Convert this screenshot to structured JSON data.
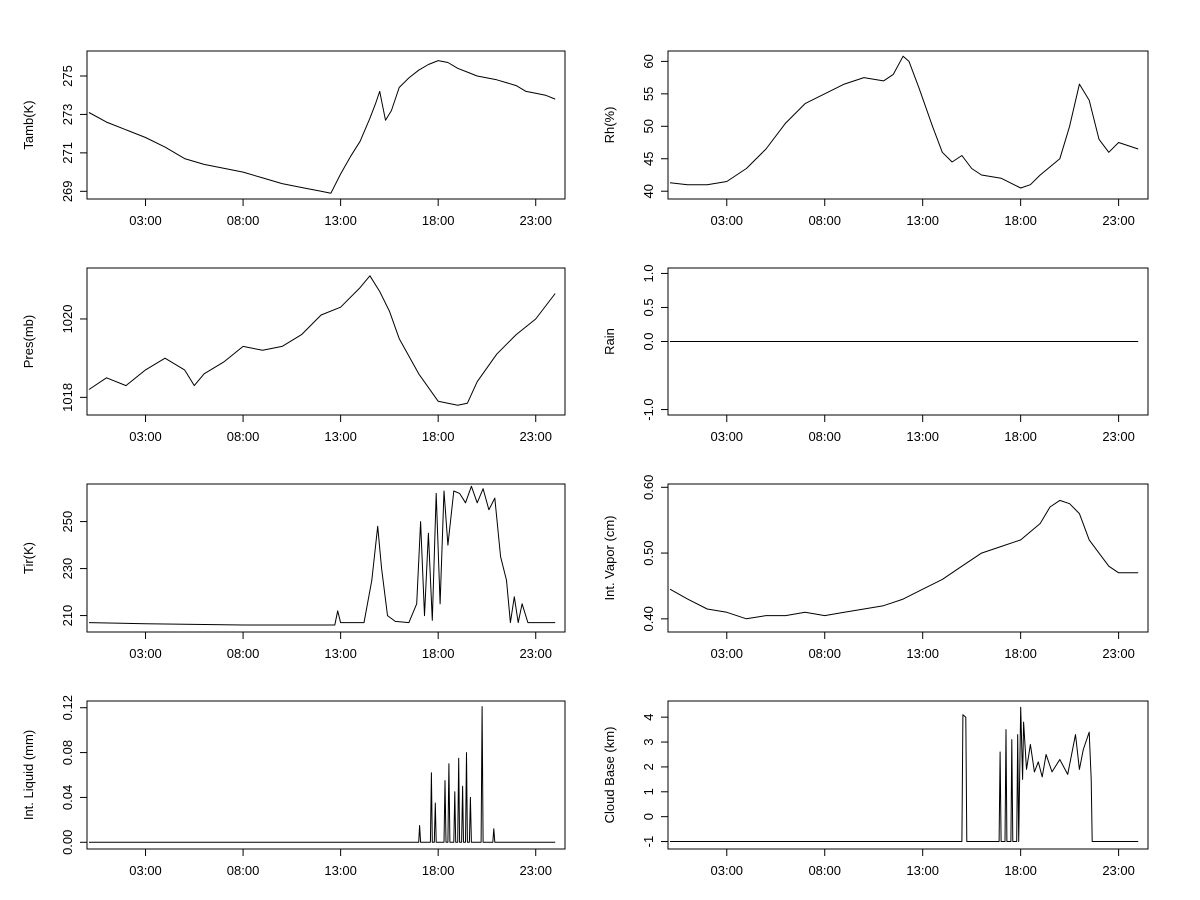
{
  "chart_data": [
    {
      "type": "line",
      "ylabel": "Tamb(K)",
      "x_ticks": [
        "03:00",
        "08:00",
        "13:00",
        "18:00",
        "23:00"
      ],
      "x_tick_hours": [
        3,
        8,
        13,
        18,
        23
      ],
      "xlim": [
        0,
        24.5
      ],
      "y_ticks": [
        "269",
        "271",
        "273",
        "275"
      ],
      "y_tick_values": [
        269,
        271,
        273,
        275
      ],
      "ylim": [
        268.6,
        276.3
      ],
      "x": [
        0.1,
        1,
        2,
        3,
        4,
        5,
        6,
        7,
        8,
        9,
        10,
        11,
        12,
        12.5,
        13,
        13.5,
        14,
        14.5,
        14.8,
        15,
        15.3,
        15.6,
        16,
        16.5,
        17,
        17.5,
        18,
        18.5,
        19,
        19.5,
        20,
        21,
        22,
        22.5,
        23,
        23.5,
        24
      ],
      "values": [
        273.1,
        272.6,
        272.2,
        271.8,
        271.3,
        270.7,
        270.4,
        270.2,
        270.0,
        269.7,
        269.4,
        269.2,
        269.0,
        268.9,
        269.9,
        270.8,
        271.6,
        272.8,
        273.6,
        274.2,
        272.7,
        273.2,
        274.4,
        274.9,
        275.3,
        275.6,
        275.8,
        275.7,
        275.4,
        275.2,
        275.0,
        274.8,
        274.5,
        274.2,
        274.1,
        274.0,
        273.8
      ]
    },
    {
      "type": "line",
      "ylabel": "Rh(%)",
      "x_ticks": [
        "03:00",
        "08:00",
        "13:00",
        "18:00",
        "23:00"
      ],
      "x_tick_hours": [
        3,
        8,
        13,
        18,
        23
      ],
      "xlim": [
        0,
        24.5
      ],
      "y_ticks": [
        "40",
        "45",
        "50",
        "55",
        "60"
      ],
      "y_tick_values": [
        40,
        45,
        50,
        55,
        60
      ],
      "ylim": [
        38.8,
        61.6
      ],
      "x": [
        0.1,
        1,
        2,
        3,
        4,
        5,
        6,
        7,
        8,
        9,
        10,
        11,
        11.5,
        12,
        12.3,
        12.8,
        13.5,
        14,
        14.5,
        15,
        15.5,
        16,
        17,
        18,
        18.5,
        19,
        20,
        20.5,
        21,
        21.5,
        22,
        22.5,
        23,
        24
      ],
      "values": [
        41.3,
        41.0,
        41.0,
        41.5,
        43.5,
        46.5,
        50.5,
        53.5,
        55.0,
        56.5,
        57.5,
        57.0,
        58.0,
        60.8,
        60.0,
        56.0,
        50.0,
        46.0,
        44.5,
        45.5,
        43.5,
        42.5,
        42.0,
        40.5,
        41.0,
        42.5,
        45.0,
        50.0,
        56.5,
        54.0,
        48.0,
        46.0,
        47.5,
        46.5
      ]
    },
    {
      "type": "line",
      "ylabel": "Pres(mb)",
      "x_ticks": [
        "03:00",
        "08:00",
        "13:00",
        "18:00",
        "23:00"
      ],
      "x_tick_hours": [
        3,
        8,
        13,
        18,
        23
      ],
      "xlim": [
        0,
        24.5
      ],
      "y_ticks": [
        "1018",
        "1020"
      ],
      "y_tick_values": [
        1018,
        1020
      ],
      "ylim": [
        1017.55,
        1021.3
      ],
      "x": [
        0.1,
        1,
        2,
        3,
        4,
        5,
        5.5,
        6,
        7,
        8,
        9,
        10,
        11,
        12,
        13,
        14,
        14.5,
        15,
        15.5,
        16,
        17,
        18,
        19,
        19.5,
        20,
        21,
        22,
        23,
        24
      ],
      "values": [
        1018.2,
        1018.5,
        1018.3,
        1018.7,
        1019.0,
        1018.7,
        1018.3,
        1018.6,
        1018.9,
        1019.3,
        1019.2,
        1019.3,
        1019.6,
        1020.1,
        1020.3,
        1020.8,
        1021.1,
        1020.7,
        1020.2,
        1019.5,
        1018.6,
        1017.9,
        1017.8,
        1017.85,
        1018.4,
        1019.1,
        1019.6,
        1020.0,
        1020.65
      ]
    },
    {
      "type": "line",
      "ylabel": "Rain",
      "x_ticks": [
        "03:00",
        "08:00",
        "13:00",
        "18:00",
        "23:00"
      ],
      "x_tick_hours": [
        3,
        8,
        13,
        18,
        23
      ],
      "xlim": [
        0,
        24.5
      ],
      "y_ticks": [
        "-1.0",
        "0.0",
        "0.5",
        "1.0"
      ],
      "y_tick_values": [
        -1.0,
        0.0,
        0.5,
        1.0
      ],
      "ylim": [
        -1.08,
        1.08
      ],
      "x": [
        0.1,
        24
      ],
      "values": [
        0,
        0
      ]
    },
    {
      "type": "line",
      "ylabel": "Tir(K)",
      "x_ticks": [
        "03:00",
        "08:00",
        "13:00",
        "18:00",
        "23:00"
      ],
      "x_tick_hours": [
        3,
        8,
        13,
        18,
        23
      ],
      "xlim": [
        0,
        24.5
      ],
      "y_ticks": [
        "210",
        "230",
        "250"
      ],
      "y_tick_values": [
        210,
        230,
        250
      ],
      "ylim": [
        203,
        266
      ],
      "x": [
        0.1,
        3,
        8,
        12,
        12.7,
        12.85,
        13.0,
        14.2,
        14.6,
        14.9,
        15.1,
        15.4,
        15.8,
        16.5,
        16.9,
        17.1,
        17.3,
        17.5,
        17.7,
        17.9,
        18.1,
        18.3,
        18.5,
        18.8,
        19.1,
        19.4,
        19.7,
        20.0,
        20.3,
        20.6,
        20.9,
        21.2,
        21.5,
        21.7,
        21.9,
        22.1,
        22.3,
        22.6,
        24
      ],
      "values": [
        207,
        206.5,
        206,
        206,
        206,
        212,
        207,
        207,
        225,
        248,
        230,
        210,
        207.5,
        207,
        215,
        250,
        210,
        245,
        208,
        262,
        215,
        263,
        240,
        263,
        262,
        258,
        265,
        258,
        264,
        255,
        260,
        235,
        225,
        207,
        218,
        207,
        215,
        207,
        207
      ]
    },
    {
      "type": "line",
      "ylabel": "Int. Vapor (cm)",
      "x_ticks": [
        "03:00",
        "08:00",
        "13:00",
        "18:00",
        "23:00"
      ],
      "x_tick_hours": [
        3,
        8,
        13,
        18,
        23
      ],
      "xlim": [
        0,
        24.5
      ],
      "y_ticks": [
        "0.40",
        "0.50",
        "0.60"
      ],
      "y_tick_values": [
        0.4,
        0.5,
        0.6
      ],
      "ylim": [
        0.38,
        0.605
      ],
      "x": [
        0.1,
        1,
        2,
        3,
        4,
        5,
        6,
        7,
        8,
        9,
        10,
        11,
        12,
        13,
        14,
        15,
        16,
        17,
        18,
        19,
        19.5,
        20,
        20.5,
        21,
        21.5,
        22,
        22.5,
        23,
        24
      ],
      "values": [
        0.445,
        0.43,
        0.415,
        0.41,
        0.4,
        0.405,
        0.405,
        0.41,
        0.405,
        0.41,
        0.415,
        0.42,
        0.43,
        0.445,
        0.46,
        0.48,
        0.5,
        0.51,
        0.52,
        0.545,
        0.57,
        0.58,
        0.575,
        0.56,
        0.52,
        0.5,
        0.48,
        0.47,
        0.47
      ]
    },
    {
      "type": "line",
      "ylabel": "Int. Liquid (mm)",
      "x_ticks": [
        "03:00",
        "08:00",
        "13:00",
        "18:00",
        "23:00"
      ],
      "x_tick_hours": [
        3,
        8,
        13,
        18,
        23
      ],
      "xlim": [
        0,
        24.5
      ],
      "y_ticks": [
        "0.00",
        "0.04",
        "0.08",
        "0.12"
      ],
      "y_tick_values": [
        0,
        0.04,
        0.08,
        0.12
      ],
      "ylim": [
        -0.006,
        0.126
      ],
      "x": [
        0.1,
        17.0,
        17.05,
        17.1,
        17.6,
        17.65,
        17.7,
        17.8,
        17.85,
        17.9,
        18.3,
        18.35,
        18.4,
        18.5,
        18.55,
        18.6,
        18.8,
        18.85,
        18.9,
        19.0,
        19.05,
        19.1,
        19.2,
        19.25,
        19.3,
        19.4,
        19.45,
        19.5,
        19.6,
        19.65,
        19.7,
        20.2,
        20.25,
        20.3,
        20.8,
        20.85,
        20.9,
        24
      ],
      "values": [
        0,
        0,
        0.015,
        0,
        0,
        0.062,
        0,
        0,
        0.035,
        0,
        0,
        0.055,
        0,
        0,
        0.07,
        0,
        0,
        0.045,
        0,
        0,
        0.075,
        0,
        0,
        0.05,
        0,
        0,
        0.08,
        0,
        0,
        0.04,
        0,
        0,
        0.121,
        0,
        0,
        0.012,
        0,
        0
      ]
    },
    {
      "type": "line",
      "ylabel": "Cloud Base (km)",
      "x_ticks": [
        "03:00",
        "08:00",
        "13:00",
        "18:00",
        "23:00"
      ],
      "x_tick_hours": [
        3,
        8,
        13,
        18,
        23
      ],
      "xlim": [
        0,
        24.5
      ],
      "y_ticks": [
        "-1",
        "0",
        "1",
        "2",
        "3",
        "4"
      ],
      "y_tick_values": [
        -1,
        0,
        1,
        2,
        3,
        4
      ],
      "ylim": [
        -1.3,
        4.65
      ],
      "x": [
        0.1,
        15.0,
        15.05,
        15.2,
        15.25,
        16.9,
        16.95,
        17.0,
        17.2,
        17.25,
        17.3,
        17.5,
        17.55,
        17.6,
        17.8,
        17.85,
        17.9,
        18.0,
        18.1,
        18.15,
        18.3,
        18.5,
        18.7,
        18.9,
        19.1,
        19.3,
        19.6,
        20.0,
        20.4,
        20.8,
        21.0,
        21.2,
        21.5,
        21.6,
        21.65,
        24
      ],
      "values": [
        -1,
        -1,
        4.1,
        4.0,
        -1,
        -1,
        2.6,
        -1,
        -1,
        3.5,
        -1,
        -1,
        3.1,
        -1,
        -1,
        3.3,
        -1,
        4.4,
        1.5,
        3.8,
        1.9,
        2.9,
        1.8,
        2.2,
        1.6,
        2.5,
        1.8,
        2.3,
        1.7,
        3.3,
        1.9,
        2.7,
        3.4,
        1.5,
        -1,
        -1
      ]
    }
  ]
}
